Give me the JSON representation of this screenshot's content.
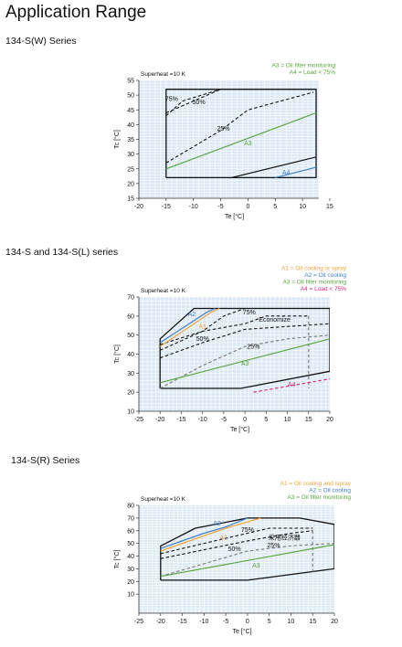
{
  "page": {
    "title": "Application Range"
  },
  "sections": [
    {
      "title": "134-S(W) Series"
    },
    {
      "title": "134-S and 134-S(L) series"
    },
    {
      "title": "134-S(R) Series"
    }
  ],
  "colors": {
    "plot_bg": "#dce9f4",
    "grid": "#ffffff",
    "envelope": "#111111",
    "A1": "#f2a23a",
    "A2": "#3d7fc9",
    "A3": "#5aa540",
    "A4_blue": "#3d7fc9",
    "A4_pink": "#d4287a",
    "load": "#222222"
  },
  "chart_data": [
    {
      "type": "line",
      "title": "",
      "subtitle": "Superheat =10 K",
      "xlabel": "Te [°C]",
      "ylabel": "Tc [°C]",
      "xlim": [
        -20,
        13
      ],
      "ylim": [
        15,
        55
      ],
      "xticks": [
        -20,
        -15,
        -10,
        -5,
        0,
        5,
        10,
        15
      ],
      "yticks": [
        15,
        20,
        25,
        30,
        35,
        40,
        45,
        50,
        55
      ],
      "grid": true,
      "legend_position": "top-right",
      "legend": [
        {
          "text": "A3 = Oil filter monitoring",
          "color": "#5aa540"
        },
        {
          "text": "A4 = Load < 75%",
          "color": "#5aa540"
        }
      ],
      "series": [
        {
          "role": "envelope",
          "style": "solid",
          "color": "#111111",
          "points": [
            [
              -15,
              22
            ],
            [
              -15,
              52
            ],
            [
              -5,
              52
            ],
            [
              12.5,
              52
            ],
            [
              12.5,
              22
            ],
            [
              -15,
              22
            ]
          ]
        },
        {
          "role": "line",
          "style": "solid",
          "color": "#111111",
          "points": [
            [
              -3,
              22
            ],
            [
              12.5,
              29
            ]
          ]
        },
        {
          "role": "line",
          "style": "dashed",
          "color": "#111111",
          "name": "75%",
          "points": [
            [
              -15,
              44
            ],
            [
              -5,
              52
            ]
          ]
        },
        {
          "role": "line",
          "style": "dashed",
          "color": "#111111",
          "name": "50%",
          "points": [
            [
              -15,
              43
            ],
            [
              -12,
              48
            ],
            [
              -5,
              52
            ]
          ]
        },
        {
          "role": "line",
          "style": "dashed",
          "color": "#111111",
          "name": "25%",
          "points": [
            [
              -15,
              27
            ],
            [
              -5,
              38
            ],
            [
              0,
              45
            ],
            [
              12,
              51
            ]
          ]
        },
        {
          "role": "line",
          "style": "solid",
          "color": "#5aa540",
          "name": "A3",
          "points": [
            [
              -15,
              25
            ],
            [
              12.5,
              44
            ]
          ]
        },
        {
          "role": "line",
          "style": "solid",
          "color": "#3d7fc9",
          "name": "A4",
          "points": [
            [
              5,
              22
            ],
            [
              12.5,
              25.5
            ]
          ]
        }
      ],
      "annotations": [
        {
          "text": "75%",
          "x": -14,
          "y": 48,
          "color": "#111111"
        },
        {
          "text": "50%",
          "x": -9,
          "y": 47,
          "color": "#111111"
        },
        {
          "text": "25%",
          "x": -4.5,
          "y": 38,
          "color": "#111111"
        },
        {
          "text": "A3",
          "x": 0,
          "y": 33,
          "color": "#5aa540"
        },
        {
          "text": "A4",
          "x": 7,
          "y": 23,
          "color": "#3d7fc9"
        }
      ]
    },
    {
      "type": "line",
      "title": "",
      "subtitle": "Superheat =10 K",
      "xlabel": "Te [°C]",
      "ylabel": "Tc [°C]",
      "xlim": [
        -25,
        20
      ],
      "ylim": [
        10,
        70
      ],
      "xticks": [
        -25,
        -20,
        -15,
        -10,
        -5,
        0,
        5,
        10,
        15,
        20
      ],
      "yticks": [
        10,
        20,
        30,
        40,
        50,
        60,
        70
      ],
      "grid": true,
      "legend_position": "top-right",
      "legend": [
        {
          "text": "A1 = Oil cooling or spray",
          "color": "#f2a23a"
        },
        {
          "text": "A2 = Oil cooling",
          "color": "#3d7fc9"
        },
        {
          "text": "A3 = Oil filter monitoring",
          "color": "#5aa540"
        },
        {
          "text": "A4 = Load < 75%",
          "color": "#d4287a"
        }
      ],
      "series": [
        {
          "role": "envelope",
          "style": "solid",
          "color": "#111111",
          "points": [
            [
              -20,
              22
            ],
            [
              -20,
              48
            ],
            [
              -12,
              64
            ],
            [
              0,
              64
            ],
            [
              20,
              64
            ],
            [
              20,
              31
            ],
            [
              -1,
              22
            ],
            [
              -20,
              22
            ]
          ]
        },
        {
          "role": "line",
          "style": "dashed",
          "color": "#111111",
          "points": [
            [
              -20,
              45
            ],
            [
              -10,
              52
            ],
            [
              0,
              56
            ],
            [
              5,
              60
            ],
            [
              15,
              60
            ]
          ]
        },
        {
          "role": "line",
          "style": "dashed",
          "color": "#777777",
          "points": [
            [
              15,
              60
            ],
            [
              15,
              22
            ]
          ]
        },
        {
          "role": "line",
          "style": "dashed",
          "color": "#111111",
          "name": "75%",
          "points": [
            [
              -20,
              42
            ],
            [
              -10,
              52
            ],
            [
              -5,
              60
            ],
            [
              0,
              64
            ]
          ]
        },
        {
          "role": "line",
          "style": "dashed",
          "color": "#111111",
          "name": "50%",
          "points": [
            [
              -20,
              38
            ],
            [
              -10,
              46
            ],
            [
              0,
              53
            ],
            [
              20,
              56
            ]
          ]
        },
        {
          "role": "line",
          "style": "dashed",
          "color": "#777777",
          "name": "25%",
          "points": [
            [
              -20,
              22
            ],
            [
              -10,
              34
            ],
            [
              0,
              44
            ],
            [
              10,
              48
            ],
            [
              20,
              50
            ]
          ]
        },
        {
          "role": "line",
          "style": "solid",
          "color": "#5aa540",
          "name": "A3",
          "points": [
            [
              -20,
              25
            ],
            [
              20,
              48
            ]
          ]
        },
        {
          "role": "line",
          "style": "solid",
          "color": "#f2a23a",
          "name": "A1",
          "points": [
            [
              -20,
              44
            ],
            [
              -8,
              62
            ],
            [
              -6,
              64
            ]
          ]
        },
        {
          "role": "line",
          "style": "solid",
          "color": "#3d7fc9",
          "name": "A2",
          "points": [
            [
              -20,
              46
            ],
            [
              -9,
              62
            ],
            [
              -7,
              64
            ]
          ]
        },
        {
          "role": "line",
          "style": "dashed",
          "color": "#d4287a",
          "name": "A4",
          "points": [
            [
              2,
              20
            ],
            [
              20,
              27
            ]
          ]
        }
      ],
      "annotations": [
        {
          "text": "A2",
          "x": -12.5,
          "y": 60,
          "color": "#3d7fc9"
        },
        {
          "text": "A1",
          "x": -10,
          "y": 53.5,
          "color": "#f2a23a"
        },
        {
          "text": "75%",
          "x": 1,
          "y": 61,
          "color": "#111111"
        },
        {
          "text": "Economize",
          "x": 7,
          "y": 57,
          "color": "#111111"
        },
        {
          "text": "50%",
          "x": -10,
          "y": 47,
          "color": "#111111"
        },
        {
          "text": "25%",
          "x": 2,
          "y": 43,
          "color": "#111111"
        },
        {
          "text": "A3",
          "x": 0,
          "y": 34,
          "color": "#5aa540"
        },
        {
          "text": "A4",
          "x": 11,
          "y": 23,
          "color": "#d4287a"
        }
      ]
    },
    {
      "type": "line",
      "title": "",
      "subtitle": "Superheat =10 K",
      "xlabel": "Te [°C]",
      "ylabel": "Tc [°C]",
      "xlim": [
        -25,
        20
      ],
      "ylim": [
        -5,
        80
      ],
      "xticks": [
        -25,
        -20,
        -15,
        -10,
        -5,
        0,
        5,
        10,
        15,
        20
      ],
      "yticks": [
        10,
        20,
        30,
        40,
        50,
        60,
        70,
        80
      ],
      "grid": true,
      "legend_position": "top-right",
      "legend": [
        {
          "text": "A1 = Oil cooling and ispray",
          "color": "#f2a23a"
        },
        {
          "text": "A2 = Oil cooling",
          "color": "#3d7fc9"
        },
        {
          "text": "A3 = Oil filter monitoring",
          "color": "#5aa540"
        }
      ],
      "series": [
        {
          "role": "envelope",
          "style": "solid",
          "color": "#111111",
          "points": [
            [
              -20,
              21
            ],
            [
              -20,
              48
            ],
            [
              -12,
              62
            ],
            [
              0,
              70
            ],
            [
              12,
              70
            ],
            [
              20,
              65
            ],
            [
              20,
              30
            ],
            [
              0,
              21
            ],
            [
              -20,
              21
            ]
          ]
        },
        {
          "role": "line",
          "style": "dashed",
          "color": "#111111",
          "name": "75%",
          "points": [
            [
              -20,
              42
            ],
            [
              -10,
              50
            ],
            [
              0,
              58
            ],
            [
              5,
              62
            ],
            [
              15,
              62
            ]
          ]
        },
        {
          "role": "line",
          "style": "dashed",
          "color": "#111111",
          "name": "50%",
          "points": [
            [
              -20,
              38
            ],
            [
              -10,
              45
            ],
            [
              0,
              52
            ],
            [
              10,
              58
            ],
            [
              15,
              60
            ]
          ]
        },
        {
          "role": "line",
          "style": "dashed",
          "color": "#777777",
          "points": [
            [
              15,
              60
            ],
            [
              15,
              27
            ]
          ]
        },
        {
          "role": "line",
          "style": "dashed",
          "color": "#777777",
          "name": "25%",
          "points": [
            [
              -20,
              24
            ],
            [
              -10,
              34
            ],
            [
              0,
              44
            ],
            [
              10,
              48
            ],
            [
              20,
              50
            ]
          ]
        },
        {
          "role": "line",
          "style": "solid",
          "color": "#5aa540",
          "name": "A3",
          "points": [
            [
              -20,
              24
            ],
            [
              20,
              49
            ]
          ]
        },
        {
          "role": "line",
          "style": "solid",
          "color": "#f2a23a",
          "name": "A1",
          "points": [
            [
              -20,
              44
            ],
            [
              -10,
              56
            ],
            [
              -5,
              62
            ],
            [
              3,
              70
            ]
          ]
        },
        {
          "role": "line",
          "style": "solid",
          "color": "#3d7fc9",
          "name": "A2",
          "points": [
            [
              -20,
              46
            ],
            [
              -10,
              58
            ],
            [
              -5,
              63
            ],
            [
              0,
              70
            ]
          ]
        }
      ],
      "annotations": [
        {
          "text": "A2",
          "x": -7,
          "y": 64,
          "color": "#3d7fc9"
        },
        {
          "text": "A1",
          "x": -5.5,
          "y": 53,
          "color": "#f2a23a"
        },
        {
          "text": "75%",
          "x": 0,
          "y": 59,
          "color": "#111111"
        },
        {
          "text": "采用经济器",
          "x": 8.5,
          "y": 53,
          "color": "#111111"
        },
        {
          "text": "50%",
          "x": -3,
          "y": 44,
          "color": "#111111"
        },
        {
          "text": "25%",
          "x": 6,
          "y": 47,
          "color": "#111111"
        },
        {
          "text": "A3",
          "x": 2,
          "y": 31,
          "color": "#5aa540"
        }
      ]
    }
  ]
}
